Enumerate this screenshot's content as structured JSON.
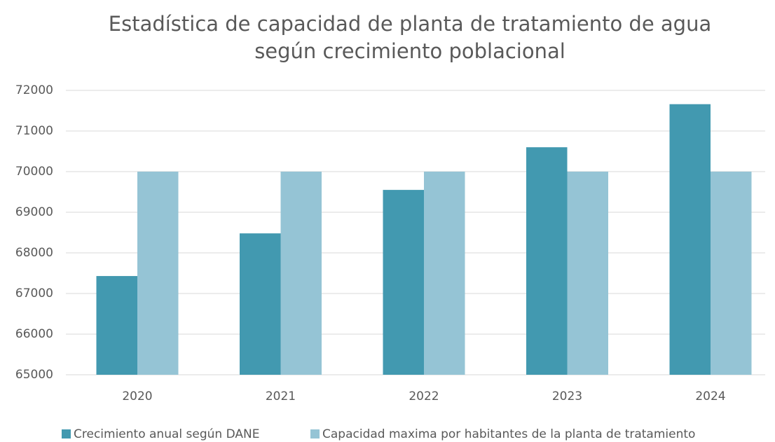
{
  "chart_data": {
    "type": "bar",
    "title": [
      "Estadística de capacidad de planta de tratamiento de agua",
      "según crecimiento poblacional"
    ],
    "categories": [
      "2020",
      "2021",
      "2022",
      "2023",
      "2024"
    ],
    "series": [
      {
        "name": "Crecimiento anual según DANE",
        "color": "#4299b0",
        "values": [
          67430,
          68480,
          69550,
          70600,
          71660
        ]
      },
      {
        "name": "Capacidad maxima por habitantes de la planta de tratamiento",
        "color": "#95c4d5",
        "values": [
          70000,
          70000,
          70000,
          70000,
          70000
        ]
      }
    ],
    "ylim": [
      65000,
      72000
    ],
    "yticks": [
      65000,
      66000,
      67000,
      68000,
      69000,
      70000,
      71000,
      72000
    ],
    "grid": true,
    "legend": "bottom"
  }
}
